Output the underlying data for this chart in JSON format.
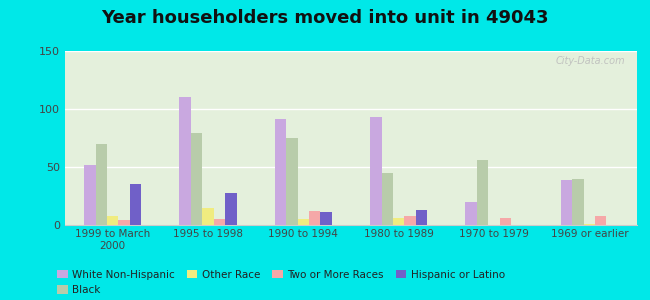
{
  "title": "Year householders moved into unit in 49043",
  "categories": [
    "1999 to March\n2000",
    "1995 to 1998",
    "1990 to 1994",
    "1980 to 1989",
    "1970 to 1979",
    "1969 or earlier"
  ],
  "series": {
    "White Non-Hispanic": [
      52,
      110,
      91,
      93,
      20,
      39
    ],
    "Black": [
      70,
      79,
      75,
      45,
      56,
      40
    ],
    "Other Race": [
      8,
      15,
      5,
      6,
      0,
      1
    ],
    "Two or More Races": [
      4,
      5,
      12,
      8,
      6,
      8
    ],
    "Hispanic or Latino": [
      35,
      28,
      11,
      13,
      0,
      0
    ]
  },
  "colors": {
    "White Non-Hispanic": "#c9a8e0",
    "Black": "#b8ccaa",
    "Other Race": "#f0ec80",
    "Two or More Races": "#f5a8a8",
    "Hispanic or Latino": "#7060c8"
  },
  "ylim": [
    0,
    150
  ],
  "yticks": [
    0,
    50,
    100,
    150
  ],
  "background_color": "#e4f0dc",
  "outer_background": "#00e8e8",
  "watermark": "City-Data.com",
  "bar_width": 0.12,
  "title_fontsize": 13
}
